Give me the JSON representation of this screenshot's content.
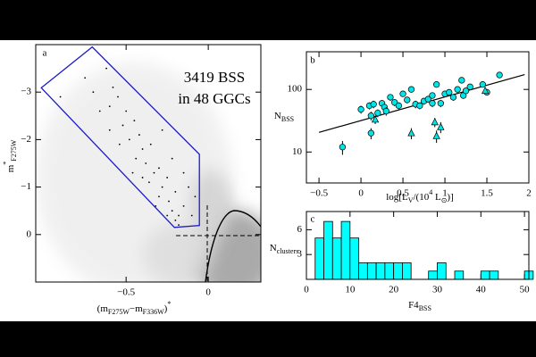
{
  "chart_data": [
    {
      "type": "scatter",
      "panel": "a",
      "annotations": [
        "3419 BSS",
        "in 48 GGCs"
      ],
      "xlabel": [
        {
          "t": "(m"
        },
        {
          "t": "F275W",
          "sub": true
        },
        {
          "t": "−m"
        },
        {
          "t": "F336W",
          "sub": true
        },
        {
          "t": ")"
        },
        {
          "t": "*",
          "sup": true
        }
      ],
      "ylabel": [
        {
          "t": "m"
        },
        {
          "t": "*",
          "sup": true
        },
        {
          "t": "F275W",
          "sub": true
        }
      ],
      "xlim": [
        -1.05,
        0.32
      ],
      "ylim": [
        1,
        -4
      ],
      "xticks": [
        {
          "value": -0.5,
          "label": "−0.5"
        },
        0
      ],
      "yticks": [
        {
          "value": -3,
          "label": "−3"
        },
        {
          "value": -2,
          "label": "−2"
        },
        {
          "value": -1,
          "label": "−1"
        },
        0
      ],
      "selection_box": {
        "color": "#1a1acc",
        "x": [
          -1.016,
          -0.706,
          -0.054,
          -0.054,
          -0.206
        ],
        "y": [
          -3.09,
          -3.95,
          -1.69,
          -0.19,
          -0.15
        ]
      },
      "series": [
        {
          "color": "#000000",
          "marker": "dot",
          "x": [
            -0.62,
            -0.58,
            -0.55,
            -0.6,
            -0.5,
            -0.52,
            -0.45,
            -0.48,
            -0.42,
            -0.4,
            -0.44,
            -0.38,
            -0.35,
            -0.33,
            -0.36,
            -0.3,
            -0.28,
            -0.3,
            -0.25,
            -0.24,
            -0.22,
            -0.2,
            -0.18,
            -0.2,
            -0.15,
            -0.12,
            -0.1,
            -0.25,
            -0.32,
            -0.4,
            -0.46,
            -0.54,
            -0.6,
            -0.66,
            -0.7,
            -0.28,
            -0.22,
            -0.15,
            -0.08,
            -0.18,
            -0.9,
            -0.75
          ],
          "y": [
            -3.5,
            -3.1,
            -2.9,
            -2.7,
            -2.6,
            -2.3,
            -2.4,
            -2.0,
            -2.1,
            -1.8,
            -1.6,
            -1.5,
            -1.9,
            -1.3,
            -1.1,
            -1.4,
            -1.0,
            -0.8,
            -1.2,
            -0.7,
            -0.5,
            -0.9,
            -0.4,
            -0.3,
            -0.6,
            -1.0,
            -0.4,
            -0.4,
            -0.6,
            -1.2,
            -1.3,
            -1.9,
            -2.2,
            -2.6,
            -3.0,
            -2.2,
            -1.6,
            -1.3,
            -0.8,
            -0.2,
            -2.9,
            -3.3
          ]
        }
      ]
    },
    {
      "type": "scatter",
      "panel": "b",
      "log_y": true,
      "xlabel": [
        {
          "t": "log[L"
        },
        {
          "t": "V",
          "sub": true
        },
        {
          "t": "/(10"
        },
        {
          "t": "4",
          "sup": true
        },
        {
          "t": " L"
        },
        {
          "t": "⊙",
          "sub": true
        },
        {
          "t": ")]"
        }
      ],
      "ylabel": [
        {
          "t": "N"
        },
        {
          "t": "BSS",
          "sub": true
        }
      ],
      "xlim": [
        -0.65,
        2
      ],
      "ylim": [
        3.2,
        400
      ],
      "xticks": [
        {
          "value": -0.5,
          "label": "−0.5"
        },
        0,
        0.5,
        1,
        1.5,
        2
      ],
      "yticks": [
        10,
        100
      ],
      "fit": {
        "color": "#000000",
        "x": [
          -0.5,
          1.95
        ],
        "y": [
          20.6,
          173
        ]
      },
      "series": [
        {
          "color": "#00e5e5",
          "marker": "circle",
          "x": [
            -0.22,
            0.0,
            0.1,
            0.15,
            0.12,
            0.2,
            0.25,
            0.28,
            0.3,
            0.35,
            0.4,
            0.45,
            0.5,
            0.55,
            0.6,
            0.65,
            0.7,
            0.75,
            0.8,
            0.85,
            0.9,
            0.95,
            1.0,
            1.05,
            1.1,
            1.15,
            1.2,
            1.22,
            1.25,
            1.3,
            1.45,
            1.5,
            1.65,
            0.12,
            0.85
          ],
          "y": [
            12,
            48,
            55,
            58,
            38,
            42,
            60,
            52,
            45,
            75,
            62,
            55,
            85,
            68,
            100,
            58,
            55,
            65,
            70,
            80,
            120,
            60,
            85,
            90,
            75,
            100,
            140,
            80,
            95,
            110,
            120,
            90,
            170,
            20,
            60
          ],
          "err": [
            3,
            7,
            7,
            8,
            6,
            6,
            8,
            7,
            7,
            9,
            8,
            7,
            9,
            8,
            10,
            8,
            7,
            8,
            8,
            9,
            11,
            8,
            9,
            9,
            9,
            10,
            12,
            9,
            10,
            10,
            11,
            10,
            13,
            4,
            8
          ]
        },
        {
          "color": "#00e5e5",
          "marker": "triangle",
          "x": [
            0.17,
            0.6,
            0.88,
            0.9,
            0.95,
            1.48
          ],
          "y": [
            33,
            20,
            30,
            18,
            25,
            95
          ],
          "err": [
            5,
            4,
            5,
            4,
            5,
            10
          ]
        }
      ]
    },
    {
      "type": "histogram",
      "panel": "c",
      "color": "#00ffff",
      "xlabel": [
        {
          "t": "F4"
        },
        {
          "t": "BSS",
          "sub": true
        }
      ],
      "ylabel": [
        {
          "t": "N"
        },
        {
          "t": "clusters",
          "sub": true
        }
      ],
      "xlim": [
        0,
        51
      ],
      "ylim": [
        0,
        8.2
      ],
      "xticks": [
        0,
        10,
        20,
        30,
        40,
        50
      ],
      "yticks": [
        3,
        6
      ],
      "bins": [
        2,
        4,
        6,
        8,
        10,
        12,
        14,
        16,
        18,
        20,
        22,
        24,
        26,
        28,
        30,
        32,
        34,
        36,
        38,
        40,
        42,
        44,
        46,
        48,
        50,
        52
      ],
      "counts": [
        5,
        7,
        5,
        7,
        5,
        2,
        2,
        2,
        2,
        2,
        2,
        0,
        0,
        1,
        2,
        0,
        1,
        0,
        0,
        1,
        1,
        0,
        0,
        0,
        1
      ]
    }
  ]
}
